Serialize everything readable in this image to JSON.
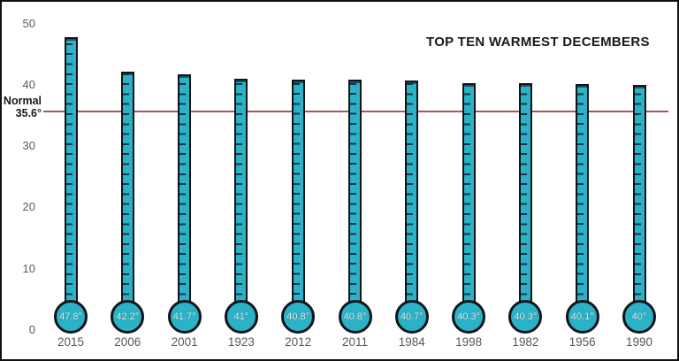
{
  "title": "TOP TEN WARMEST DECEMBERS",
  "normal_label": {
    "line1": "Normal",
    "line2": "35.6°"
  },
  "colors": {
    "thermometer_fill": "#2bb2c7",
    "tick_marks": "#133744",
    "reference_line": "#b4524b",
    "axis_text": "#5a5b5d",
    "year_text": "#58595b",
    "title_text": "#1a1a1a",
    "bulb_value_text": "#e6f4f8",
    "outline": "#101418"
  },
  "chart_data": {
    "type": "bar",
    "style": "thermometer",
    "title": "TOP TEN WARMEST DECEMBERS",
    "categories": [
      "2015",
      "2006",
      "2001",
      "1923",
      "2012",
      "2011",
      "1984",
      "1998",
      "1982",
      "1956",
      "1990"
    ],
    "values": [
      47.8,
      42.2,
      41.7,
      41,
      40.8,
      40.8,
      40.7,
      40.3,
      40.3,
      40.1,
      40
    ],
    "value_labels": [
      "47.8°",
      "42.2°",
      "41.7°",
      "41°",
      "40.8°",
      "40.8°",
      "40.7°",
      "40.3°",
      "40.3°",
      "40.1°",
      "40°"
    ],
    "xlabel": "",
    "ylabel": "",
    "ylim": [
      0,
      50
    ],
    "yticks": [
      0,
      10,
      20,
      30,
      40,
      50
    ],
    "grid": false,
    "legend": false,
    "reference_line": {
      "label": "Normal",
      "value_label": "35.6°",
      "value": 35.6
    }
  }
}
